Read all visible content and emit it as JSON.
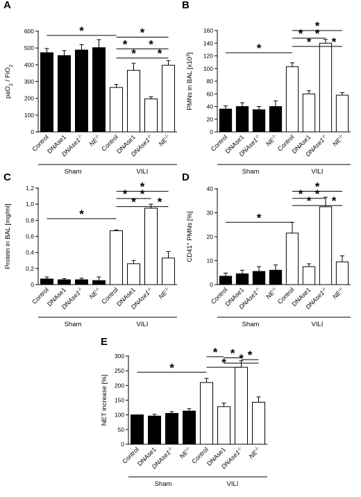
{
  "chart_data": [
    {
      "panel": "A",
      "type": "bar",
      "ylabel": "paO2 / FiO2",
      "ylabel_main": "paO",
      "ylabel_sub": "2",
      "ylabel_rest": " / FiO",
      "ylabel_sub2": "2",
      "ylim": [
        0,
        600
      ],
      "yticks": [
        "0",
        "100",
        "200",
        "300",
        "400",
        "500",
        "600"
      ],
      "categories": [
        {
          "name": "Control",
          "sup": ""
        },
        {
          "name": "DNAse1",
          "sup": ""
        },
        {
          "name": "DNAse1",
          "sup": "-/-"
        },
        {
          "name": "NE",
          "sup": "-/-"
        },
        {
          "name": "Control",
          "sup": ""
        },
        {
          "name": "DNAse1",
          "sup": ""
        },
        {
          "name": "DNAse1",
          "sup": "-/-"
        },
        {
          "name": "NE",
          "sup": "-/-"
        }
      ],
      "values": [
        472,
        455,
        488,
        502,
        265,
        367,
        197,
        397
      ],
      "errors": [
        25,
        30,
        32,
        48,
        18,
        42,
        12,
        28
      ],
      "fills": [
        "black",
        "black",
        "black",
        "black",
        "white",
        "white",
        "white",
        "white"
      ],
      "groups": [
        {
          "label": "Sham",
          "from": 0,
          "to": 3
        },
        {
          "label": "VILI",
          "from": 4,
          "to": 7
        }
      ],
      "significance": [
        {
          "from": 0,
          "to": 4,
          "y": 575,
          "mark": "*"
        },
        {
          "from": 4,
          "to": 7,
          "y": 565,
          "mark": "*"
        },
        {
          "from": 4,
          "to": 5,
          "y": 495,
          "mark": "*"
        },
        {
          "from": 5,
          "to": 7,
          "y": 495,
          "mark": "*"
        },
        {
          "from": 4,
          "to": 6,
          "y": 440,
          "mark": "*"
        },
        {
          "from": 6,
          "to": 7,
          "y": 440,
          "mark": "*"
        }
      ]
    },
    {
      "panel": "B",
      "type": "bar",
      "ylabel": "PMNs in BAL [x10³]",
      "ylabel_main": "PMNs in BAL [x10",
      "ylabel_sup": "3",
      "ylabel_end": "]",
      "ylim": [
        0,
        160
      ],
      "yticks": [
        "0",
        "20",
        "40",
        "60",
        "80",
        "100",
        "120",
        "140",
        "160"
      ],
      "categories": [
        {
          "name": "Control",
          "sup": ""
        },
        {
          "name": "DNAse1",
          "sup": ""
        },
        {
          "name": "DNAse1",
          "sup": "-/-"
        },
        {
          "name": "NE",
          "sup": "-/-"
        },
        {
          "name": "Control",
          "sup": ""
        },
        {
          "name": "DNAse1",
          "sup": ""
        },
        {
          "name": "DNAse1",
          "sup": "-/-"
        },
        {
          "name": "NE",
          "sup": "-/-"
        }
      ],
      "values": [
        36,
        40,
        35,
        40,
        103,
        60,
        140,
        58
      ],
      "errors": [
        5,
        6,
        5,
        9,
        6,
        5,
        6,
        4
      ],
      "fills": [
        "black",
        "black",
        "black",
        "black",
        "white",
        "white",
        "white",
        "white"
      ],
      "groups": [
        {
          "label": "Sham",
          "from": 0,
          "to": 3
        },
        {
          "label": "VILI",
          "from": 4,
          "to": 7
        }
      ],
      "significance": [
        {
          "from": 0,
          "to": 4,
          "y": 125,
          "mark": "*"
        },
        {
          "from": 4,
          "to": 7,
          "y": 160,
          "mark": "*"
        },
        {
          "from": 4,
          "to": 5,
          "y": 148,
          "mark": "*"
        },
        {
          "from": 5,
          "to": 6,
          "y": 148,
          "mark": "*"
        },
        {
          "from": 4,
          "to": 6,
          "y": 135,
          "mark": "*"
        },
        {
          "from": 6,
          "to": 7,
          "y": 135,
          "mark": "*"
        }
      ]
    },
    {
      "panel": "C",
      "type": "bar",
      "ylabel": "Protein in BAL [mg/ml]",
      "ylim": [
        0,
        1.2
      ],
      "yticks": [
        "0",
        "0,2",
        "0,4",
        "0,6",
        "0,8",
        "1,0",
        "1,2"
      ],
      "categories": [
        {
          "name": "Control",
          "sup": ""
        },
        {
          "name": "DNAse1",
          "sup": ""
        },
        {
          "name": "DNAse1",
          "sup": "-/-"
        },
        {
          "name": "NE",
          "sup": "-/-"
        },
        {
          "name": "Control",
          "sup": ""
        },
        {
          "name": "DNAse1",
          "sup": ""
        },
        {
          "name": "DNAse1",
          "sup": "-/-"
        },
        {
          "name": "NE",
          "sup": "-/-"
        }
      ],
      "values": [
        0.07,
        0.06,
        0.06,
        0.05,
        0.67,
        0.26,
        0.95,
        0.33
      ],
      "errors": [
        0.025,
        0.015,
        0.02,
        0.045,
        0.01,
        0.04,
        0.05,
        0.08
      ],
      "fills": [
        "black",
        "black",
        "black",
        "black",
        "white",
        "white",
        "white",
        "white"
      ],
      "groups": [
        {
          "label": "Sham",
          "from": 0,
          "to": 3
        },
        {
          "label": "VILI",
          "from": 4,
          "to": 7
        }
      ],
      "significance": [
        {
          "from": 0,
          "to": 4,
          "y": 0.82,
          "mark": "*"
        },
        {
          "from": 4,
          "to": 7,
          "y": 1.16,
          "mark": "*"
        },
        {
          "from": 4,
          "to": 5,
          "y": 1.07,
          "mark": "*"
        },
        {
          "from": 5,
          "to": 6,
          "y": 1.07,
          "mark": "*"
        },
        {
          "from": 4,
          "to": 6,
          "y": 0.97,
          "mark": "*"
        },
        {
          "from": 6,
          "to": 7,
          "y": 0.97,
          "mark": "*"
        }
      ]
    },
    {
      "panel": "D",
      "type": "bar",
      "ylabel": "CD41⁺ PMNs [%]",
      "ylabel_main": "CD41",
      "ylabel_sup": "+",
      "ylabel_end": " PMNs [%]",
      "ylim": [
        0,
        40
      ],
      "yticks": [
        "0",
        "10",
        "20",
        "30",
        "40"
      ],
      "categories": [
        {
          "name": "Control",
          "sup": ""
        },
        {
          "name": "DNAse1",
          "sup": ""
        },
        {
          "name": "DNAse1",
          "sup": "-/-"
        },
        {
          "name": "NE",
          "sup": "-/-"
        },
        {
          "name": "Control",
          "sup": ""
        },
        {
          "name": "DNAse1",
          "sup": ""
        },
        {
          "name": "DNAse1",
          "sup": "-/-"
        },
        {
          "name": "NE",
          "sup": "-/-"
        }
      ],
      "values": [
        3.5,
        4.5,
        5.5,
        6.0,
        21.5,
        7.5,
        32.5,
        9.5
      ],
      "errors": [
        1.3,
        1.5,
        2.0,
        2.2,
        4.5,
        1.2,
        4.0,
        2.5
      ],
      "fills": [
        "black",
        "black",
        "black",
        "black",
        "white",
        "white",
        "white",
        "white"
      ],
      "groups": [
        {
          "label": "Sham",
          "from": 0,
          "to": 3
        },
        {
          "label": "VILI",
          "from": 4,
          "to": 7
        }
      ],
      "significance": [
        {
          "from": 0,
          "to": 4,
          "y": 26,
          "mark": "*"
        },
        {
          "from": 4,
          "to": 7,
          "y": 39,
          "mark": "*"
        },
        {
          "from": 4,
          "to": 5,
          "y": 36,
          "mark": "*"
        },
        {
          "from": 5,
          "to": 6,
          "y": 36,
          "mark": "*"
        },
        {
          "from": 4,
          "to": 6,
          "y": 33,
          "mark": "*"
        },
        {
          "from": 6,
          "to": 7,
          "y": 33,
          "mark": "*"
        }
      ]
    },
    {
      "panel": "E",
      "type": "bar",
      "ylabel": "NET increase [%]",
      "ylim": [
        0,
        300
      ],
      "yticks": [
        "0",
        "50",
        "100",
        "150",
        "200",
        "250",
        "300"
      ],
      "categories": [
        {
          "name": "Control",
          "sup": ""
        },
        {
          "name": "DNAse1",
          "sup": ""
        },
        {
          "name": "DNAse1",
          "sup": "-/-"
        },
        {
          "name": "NE",
          "sup": "-/-"
        },
        {
          "name": "Control",
          "sup": ""
        },
        {
          "name": "DNAse1",
          "sup": ""
        },
        {
          "name": "DNAse1",
          "sup": "-/-"
        },
        {
          "name": "NE",
          "sup": "-/-"
        }
      ],
      "values": [
        100,
        96,
        105,
        113,
        210,
        128,
        262,
        143
      ],
      "errors": [
        0,
        6,
        6,
        8,
        14,
        12,
        22,
        18
      ],
      "fills": [
        "black",
        "black",
        "black",
        "black",
        "white",
        "white",
        "white",
        "white"
      ],
      "groups": [
        {
          "label": "Sham",
          "from": 0,
          "to": 3
        },
        {
          "label": "VILI",
          "from": 4,
          "to": 7
        }
      ],
      "significance": [
        {
          "from": 0,
          "to": 4,
          "y": 245,
          "mark": "*"
        },
        {
          "from": 4,
          "to": 5,
          "y": 298,
          "mark": "*"
        },
        {
          "from": 5,
          "to": 6,
          "y": 294,
          "mark": "*"
        },
        {
          "from": 6,
          "to": 7,
          "y": 288,
          "mark": "*"
        },
        {
          "from": 5,
          "to": 7,
          "y": 276,
          "mark": "*"
        },
        {
          "from": 4,
          "to": 6,
          "y": 262,
          "mark": "*"
        }
      ]
    }
  ]
}
